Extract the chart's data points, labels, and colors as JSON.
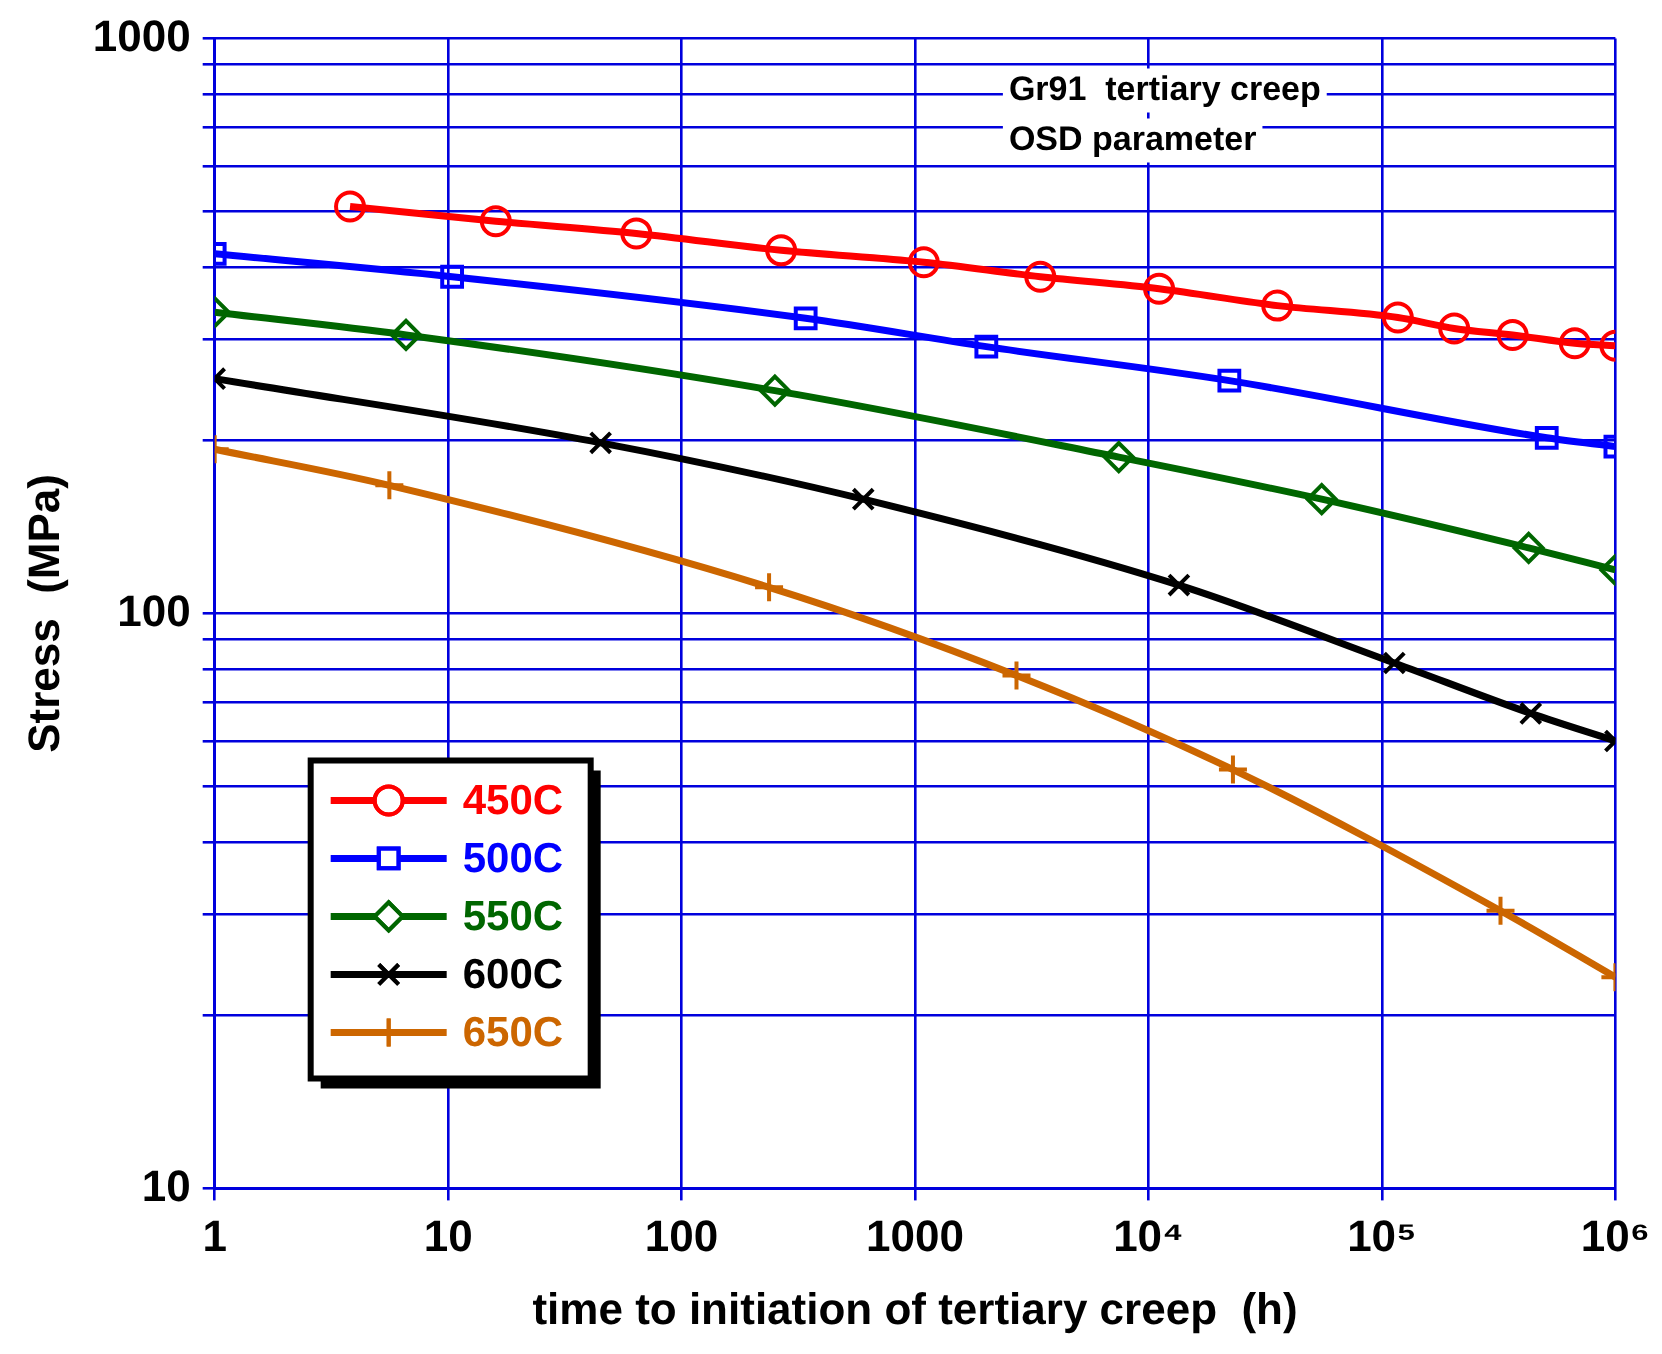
{
  "chart_data": {
    "type": "line",
    "xlabel": "time to initiation of tertiary creep  (h)",
    "ylabel": "Stress  (MPa)",
    "annotations": [
      "Gr91  tertiary creep",
      "OSD parameter"
    ],
    "log": "xy",
    "grid": true,
    "legend": "bottom left",
    "line_style": "solid",
    "xlim": [
      1,
      1000000
    ],
    "ylim": [
      10,
      1000
    ],
    "xticks": [
      1,
      10,
      100,
      1000,
      {
        "value": 10000,
        "label": "10⁴"
      },
      {
        "value": 100000,
        "label": "10⁵"
      },
      {
        "value": 1000000,
        "label": "10⁶"
      }
    ],
    "yticks": [
      10,
      {
        "value": 20,
        "label": null
      },
      {
        "value": 30,
        "label": null
      },
      {
        "value": 40,
        "label": null
      },
      {
        "value": 50,
        "label": null
      },
      {
        "value": 60,
        "label": null
      },
      {
        "value": 70,
        "label": null
      },
      {
        "value": 80,
        "label": null
      },
      {
        "value": 90,
        "label": null
      },
      100,
      {
        "value": 200,
        "label": null
      },
      {
        "value": 300,
        "label": null
      },
      {
        "value": 400,
        "label": null
      },
      {
        "value": 500,
        "label": null
      },
      {
        "value": 600,
        "label": null
      },
      {
        "value": 700,
        "label": null
      },
      {
        "value": 800,
        "label": null
      },
      {
        "value": 900,
        "label": null
      },
      1000
    ],
    "series": [
      {
        "name": "450C",
        "color": "#ff0000",
        "marker": "circle",
        "x": [
          3.8,
          16,
          64,
          267,
          1090,
          3440,
          11100,
          35600,
          117000,
          204000,
          363000,
          670000,
          1000000
        ],
        "values": [
          510,
          481,
          458,
          428,
          408,
          385,
          367,
          343,
          327,
          313,
          305,
          295,
          292
        ]
      },
      {
        "name": "500C",
        "color": "#0000ff",
        "marker": "square",
        "x": [
          1,
          10.4,
          340,
          2020,
          22200,
          508000,
          1000000
        ],
        "values": [
          422,
          385,
          326,
          291,
          254,
          202,
          195
        ]
      },
      {
        "name": "550C",
        "color": "#006600",
        "marker": "diamond",
        "x": [
          1,
          6.6,
          251,
          7460,
          55200,
          425000,
          1000000
        ],
        "values": [
          334,
          305,
          244,
          187,
          158,
          130,
          119
        ]
      },
      {
        "name": "600C",
        "color": "#000000",
        "marker": "cross",
        "x": [
          1,
          45,
          600,
          13500,
          113000,
          434000,
          1000000
        ],
        "values": [
          256,
          198,
          158,
          112,
          82,
          67,
          60
        ]
      },
      {
        "name": "650C",
        "color": "#cc6600",
        "marker": "plus",
        "x": [
          1,
          5.6,
          237,
          2720,
          23000,
          322000,
          1000000
        ],
        "values": [
          193,
          167,
          111,
          78,
          53.5,
          30.4,
          23.3
        ]
      }
    ]
  }
}
